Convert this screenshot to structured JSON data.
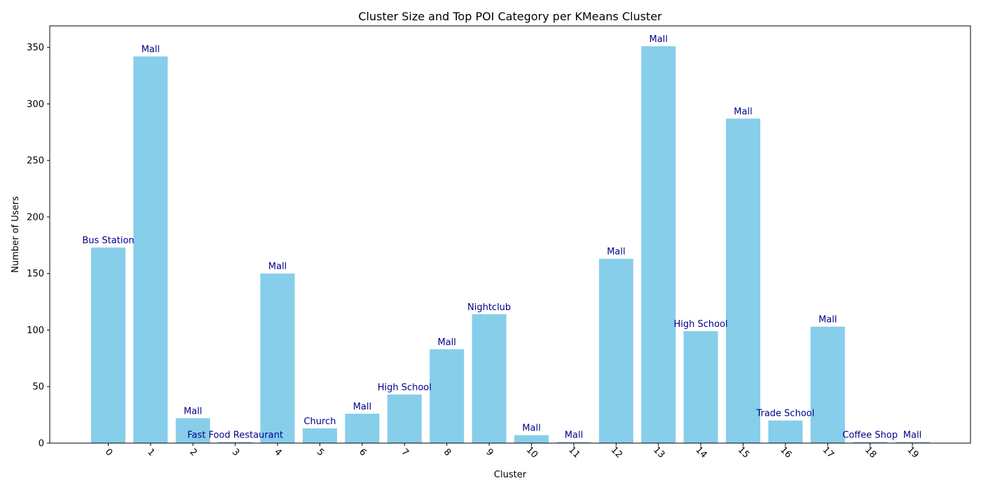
{
  "chart_data": {
    "type": "bar",
    "title": "Cluster Size and Top POI Category per KMeans Cluster",
    "xlabel": "Cluster",
    "ylabel": "Number of Users",
    "categories": [
      "0",
      "1",
      "2",
      "3",
      "4",
      "5",
      "6",
      "7",
      "8",
      "9",
      "10",
      "11",
      "12",
      "13",
      "14",
      "15",
      "16",
      "17",
      "18",
      "19"
    ],
    "values": [
      173,
      342,
      22,
      1,
      150,
      13,
      26,
      43,
      83,
      114,
      7,
      1,
      163,
      351,
      99,
      287,
      20,
      103,
      1,
      1
    ],
    "bar_labels": [
      "Bus Station",
      "Mall",
      "Mall",
      "Fast Food Restaurant",
      "Mall",
      "Church",
      "Mall",
      "High School",
      "Mall",
      "Nightclub",
      "Mall",
      "Mall",
      "Mall",
      "Mall",
      "High School",
      "Mall",
      "Trade School",
      "Mall",
      "Coffee Shop",
      "Mall"
    ],
    "ylim": [
      0,
      369
    ],
    "yticks": [
      0,
      50,
      100,
      150,
      200,
      250,
      300,
      350
    ],
    "xtick_rotation": 45,
    "grid": false,
    "legend": "none",
    "bar_color": "#87ceeb",
    "label_color": "#00008b"
  }
}
